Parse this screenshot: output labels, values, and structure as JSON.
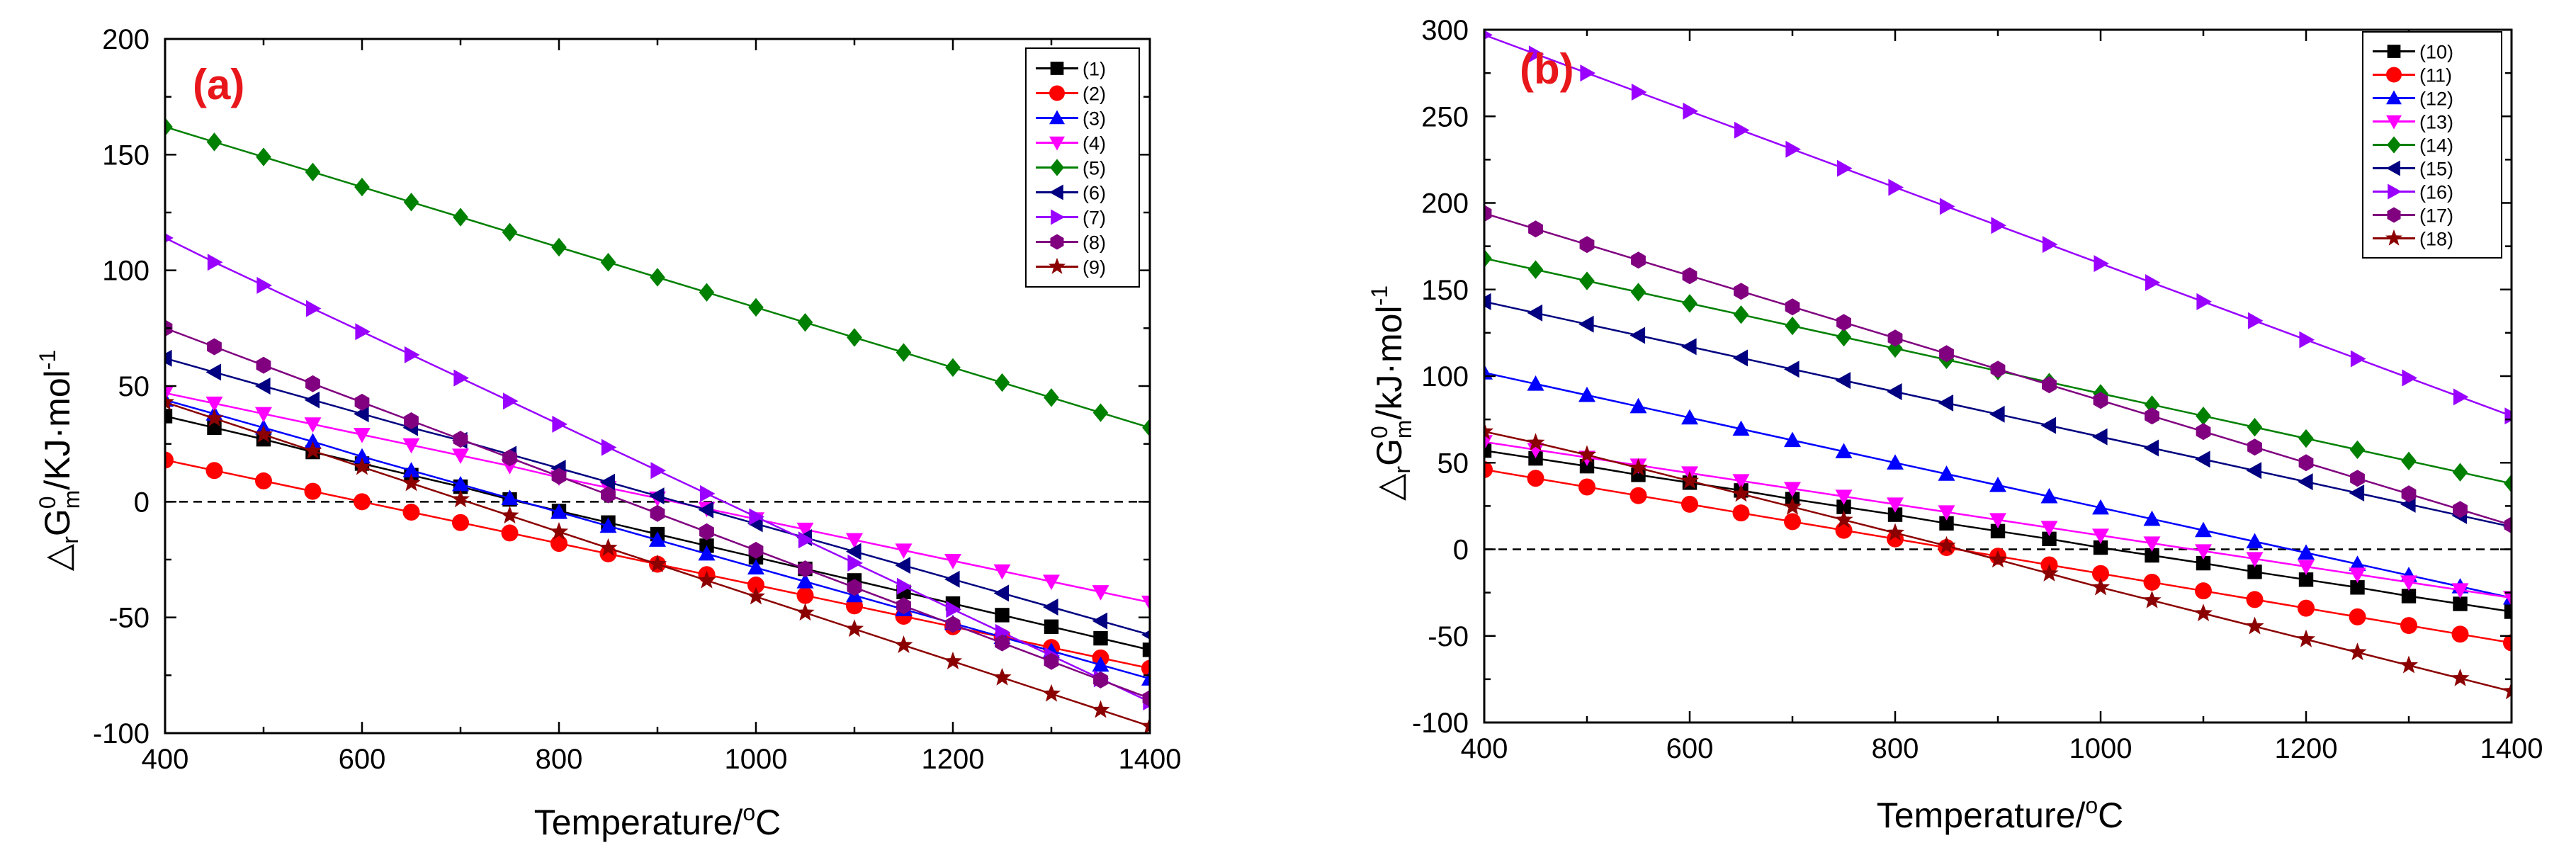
{
  "figure": {
    "y_label_symbol": "△",
    "y_label_sub": "r",
    "y_label_G": "G",
    "y_label_sup": "0",
    "y_label_sub_m": "m",
    "y_label_sep": "/",
    "y_label_unit_a": "KJ·mol",
    "y_label_unit_b": "kJ·mol",
    "y_label_exp": "-1",
    "x_label_main": "Temperature/",
    "x_label_sup": "o",
    "x_label_unit": "C"
  },
  "chart_data": [
    {
      "panel": "(a)",
      "type": "line",
      "title": "",
      "xlabel": "Temperature/°C",
      "ylabel": "ΔrG0m/KJ·mol-1",
      "xlim": [
        400,
        1400
      ],
      "ylim": [
        -100,
        200
      ],
      "xticks": [
        400,
        600,
        800,
        1000,
        1200,
        1400
      ],
      "yticks": [
        -100,
        -50,
        0,
        50,
        100,
        150,
        200
      ],
      "reference_line": 0,
      "x": [
        400,
        450,
        500,
        550,
        600,
        650,
        700,
        750,
        800,
        850,
        900,
        950,
        1000,
        1050,
        1100,
        1150,
        1200,
        1250,
        1300,
        1350,
        1400
      ],
      "series": [
        {
          "name": "(1)",
          "color": "#000000",
          "marker": "square",
          "values": [
            37,
            32,
            27,
            21.5,
            16.5,
            11.5,
            6.5,
            1,
            -4,
            -9,
            -14,
            -19,
            -24,
            -29,
            -34,
            -39,
            -44,
            -49,
            -54,
            -59,
            -64
          ]
        },
        {
          "name": "(2)",
          "color": "#ff0000",
          "marker": "circle",
          "values": [
            18,
            13.5,
            9,
            4.5,
            0,
            -4.5,
            -9,
            -13.5,
            -18,
            -22.5,
            -27,
            -31.5,
            -36,
            -40.5,
            -45,
            -49.5,
            -54,
            -58.5,
            -63,
            -67.5,
            -72
          ]
        },
        {
          "name": "(3)",
          "color": "#0000ff",
          "marker": "triangle-up",
          "values": [
            44,
            38,
            32,
            26,
            19.5,
            13.5,
            7.5,
            1.5,
            -4.5,
            -10.5,
            -16.5,
            -22.5,
            -28.5,
            -34.5,
            -40.5,
            -46.5,
            -52.5,
            -58.5,
            -64.5,
            -70.5,
            -76.5
          ]
        },
        {
          "name": "(4)",
          "color": "#ff00ff",
          "marker": "triangle-down",
          "values": [
            47,
            42.5,
            38,
            33.5,
            29,
            24.5,
            20,
            15.5,
            10.5,
            6,
            1.5,
            -3,
            -7.5,
            -12,
            -16.5,
            -21,
            -25.5,
            -30,
            -34.5,
            -39,
            -43.5
          ]
        },
        {
          "name": "(5)",
          "color": "#008000",
          "marker": "diamond",
          "values": [
            162,
            155.5,
            149,
            142.5,
            136,
            129.5,
            123,
            116.5,
            110,
            103.5,
            97,
            90.5,
            84,
            77.5,
            71,
            64.5,
            58,
            51.5,
            45,
            38.5,
            32
          ]
        },
        {
          "name": "(6)",
          "color": "#000080",
          "marker": "triangle-left",
          "values": [
            62,
            56,
            50,
            44,
            38,
            32,
            26.5,
            20.5,
            14.5,
            8.5,
            2.5,
            -3.5,
            -9.5,
            -15.5,
            -21.5,
            -27.5,
            -33.5,
            -39.5,
            -45.5,
            -51.5,
            -57.5
          ]
        },
        {
          "name": "(7)",
          "color": "#9900ff",
          "marker": "triangle-right",
          "values": [
            114,
            103.5,
            93.5,
            83.5,
            73.5,
            63.5,
            53.5,
            43.5,
            33.5,
            23.5,
            13.5,
            3.5,
            -6.5,
            -16.5,
            -26.5,
            -36.5,
            -46.5,
            -56.5,
            -66.5,
            -76.5,
            -86.5
          ]
        },
        {
          "name": "(8)",
          "color": "#800080",
          "marker": "hexagon",
          "values": [
            75,
            67,
            59,
            51,
            43,
            35,
            27,
            19,
            11,
            3,
            -5,
            -13,
            -21,
            -29,
            -37,
            -45,
            -53,
            -61,
            -69,
            -77,
            -85
          ]
        },
        {
          "name": "(9)",
          "color": "#8b0000",
          "marker": "star",
          "values": [
            43,
            36,
            29,
            22,
            15,
            8,
            1,
            -6,
            -13,
            -20,
            -27,
            -34,
            -41,
            -48,
            -55,
            -62,
            -69,
            -76,
            -83,
            -90,
            -97
          ]
        }
      ]
    },
    {
      "panel": "(b)",
      "type": "line",
      "title": "",
      "xlabel": "Temperature/°C",
      "ylabel": "ΔrG0m/kJ·mol-1",
      "xlim": [
        400,
        1400
      ],
      "ylim": [
        -100,
        300
      ],
      "xticks": [
        400,
        600,
        800,
        1000,
        1200,
        1400
      ],
      "yticks": [
        -100,
        -50,
        0,
        50,
        100,
        150,
        200,
        250,
        300
      ],
      "reference_line": 0,
      "x": [
        400,
        450,
        500,
        550,
        600,
        650,
        700,
        750,
        800,
        850,
        900,
        950,
        1000,
        1050,
        1100,
        1150,
        1200,
        1250,
        1300,
        1350,
        1400
      ],
      "series": [
        {
          "name": "(10)",
          "color": "#000000",
          "marker": "square",
          "values": [
            57,
            52.5,
            48,
            43,
            38.5,
            34,
            29,
            24.5,
            20,
            15,
            10.5,
            6,
            1,
            -3.5,
            -8,
            -13,
            -17.5,
            -22,
            -27,
            -31.5,
            -36
          ]
        },
        {
          "name": "(11)",
          "color": "#ff0000",
          "marker": "circle",
          "values": [
            46,
            41,
            36,
            31,
            26,
            21,
            16,
            11,
            6,
            1,
            -4,
            -9,
            -14,
            -19,
            -24,
            -29,
            -34,
            -39,
            -44,
            -49,
            -54
          ]
        },
        {
          "name": "(12)",
          "color": "#0000ff",
          "marker": "triangle-up",
          "values": [
            102,
            95.5,
            89,
            82.5,
            76,
            69.5,
            63,
            56.5,
            50,
            43.5,
            37,
            30.5,
            24,
            17.5,
            11,
            4.5,
            -2,
            -8.5,
            -15,
            -21.5,
            -28
          ]
        },
        {
          "name": "(13)",
          "color": "#ff00ff",
          "marker": "triangle-down",
          "values": [
            62,
            57.5,
            53,
            48.5,
            44,
            39.5,
            35,
            30.5,
            26,
            21.5,
            17,
            12.5,
            8,
            3.5,
            -1,
            -5.5,
            -10,
            -14.5,
            -19,
            -23.5,
            -28
          ]
        },
        {
          "name": "(14)",
          "color": "#008000",
          "marker": "diamond",
          "values": [
            168,
            161.5,
            155,
            148.5,
            142,
            135.5,
            129,
            122.5,
            116,
            109.5,
            103,
            96.5,
            90,
            83.5,
            77,
            70.5,
            64,
            57.5,
            51,
            44.5,
            38
          ]
        },
        {
          "name": "(15)",
          "color": "#000080",
          "marker": "triangle-left",
          "values": [
            143,
            136.5,
            130,
            123.5,
            117,
            110.5,
            104,
            97.5,
            91,
            84.5,
            78,
            71.5,
            65,
            58.5,
            52,
            45.5,
            39,
            32.5,
            26,
            19.5,
            13
          ]
        },
        {
          "name": "(16)",
          "color": "#9900ff",
          "marker": "triangle-right",
          "values": [
            297,
            286,
            275,
            264,
            253,
            242,
            231,
            220,
            209,
            198,
            187,
            176,
            165,
            154,
            143,
            132,
            121,
            110,
            99,
            88,
            77
          ]
        },
        {
          "name": "(17)",
          "color": "#800080",
          "marker": "hexagon",
          "values": [
            194,
            185,
            176,
            167,
            158,
            149,
            140,
            131,
            122,
            113,
            104,
            95,
            86,
            77,
            68,
            59,
            50,
            41,
            32,
            23,
            14
          ]
        },
        {
          "name": "(18)",
          "color": "#8b0000",
          "marker": "star",
          "values": [
            68,
            61.5,
            54.5,
            47,
            39.5,
            32,
            24.5,
            17,
            9.5,
            2,
            -6,
            -14,
            -22,
            -29.5,
            -37,
            -44.5,
            -52,
            -59.5,
            -67,
            -74.5,
            -82
          ]
        }
      ]
    }
  ]
}
